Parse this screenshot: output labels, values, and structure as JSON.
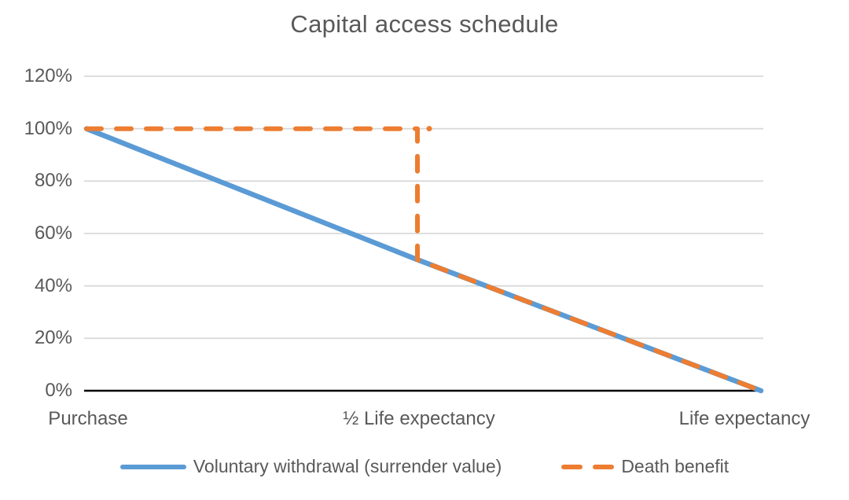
{
  "chart": {
    "title": "Capital access schedule",
    "y_axis": {
      "labels": [
        "120%",
        "100%",
        "80%",
        "60%",
        "40%",
        "20%",
        "0%"
      ]
    },
    "x_axis": {
      "labels": [
        "Purchase",
        "½ Life expectancy",
        "Life expectancy"
      ]
    },
    "legend": {
      "items": [
        {
          "label": "Voluntary withdrawal (surrender value)",
          "color": "#5B9BD5",
          "style": "solid"
        },
        {
          "label": "Death benefit",
          "color": "#ED7D31",
          "style": "dashed"
        }
      ]
    },
    "colors": {
      "series_blue": "#5B9BD5",
      "series_orange": "#ED7D31",
      "text": "#595959",
      "gridline": "#D9D9D9",
      "axis": "#000000",
      "background": "#FFFFFF"
    }
  },
  "chart_data": {
    "type": "line",
    "title": "Capital access schedule",
    "categories": [
      "Purchase",
      "½ Life expectancy",
      "Life expectancy"
    ],
    "category_positions": [
      0,
      0.5,
      1
    ],
    "series": [
      {
        "name": "Voluntary withdrawal (surrender value)",
        "color": "#5B9BD5",
        "dash": "solid",
        "points": [
          [
            0,
            100
          ],
          [
            0.5,
            50
          ],
          [
            1,
            0
          ]
        ]
      },
      {
        "name": "Death benefit",
        "color": "#ED7D31",
        "dash": "dashed",
        "points": [
          [
            0,
            100
          ],
          [
            0.5,
            100
          ],
          [
            0.5,
            50
          ],
          [
            1,
            0
          ]
        ]
      }
    ],
    "ylim": [
      0,
      120
    ],
    "yticks": [
      0,
      20,
      40,
      60,
      80,
      100,
      120
    ],
    "ytick_format": "percent",
    "xlabel": "",
    "ylabel": "",
    "grid": true,
    "legend_position": "bottom"
  }
}
